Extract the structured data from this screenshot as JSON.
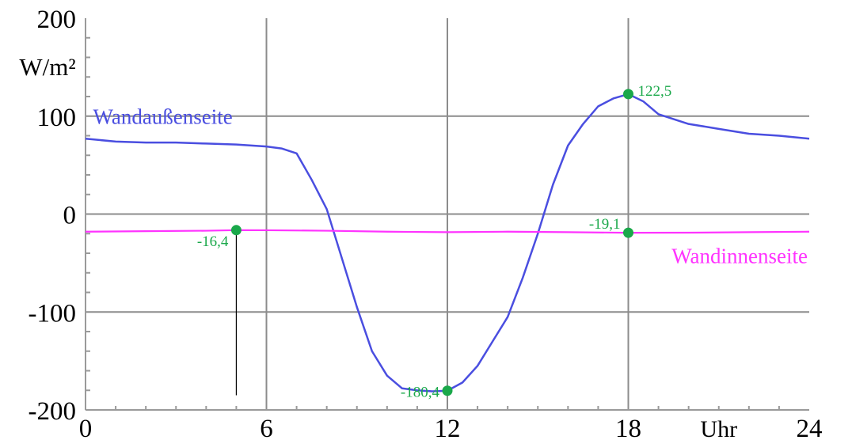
{
  "chart_data": {
    "type": "line",
    "x_ticks": [
      "0",
      "6",
      "12",
      "18",
      "24"
    ],
    "x_unit": "Uhr",
    "y_ticks": [
      "200",
      "100",
      "0",
      "-100",
      "-200"
    ],
    "y_unit": "W/m²",
    "xlim": [
      0,
      24
    ],
    "ylim": [
      -200,
      200
    ],
    "grid": true,
    "colors": {
      "outer": "#4a4ee0",
      "inner": "#ff33ff",
      "marker": "#1aa84a",
      "grid": "#8c8c8c",
      "axis": "#9a9a9a"
    },
    "series": [
      {
        "name": "Wandaußenseite",
        "x": [
          0,
          1,
          2,
          3,
          4,
          5,
          6,
          6.5,
          7,
          7.5,
          8,
          8.5,
          9,
          9.5,
          10,
          10.5,
          11,
          11.5,
          12,
          12.5,
          13,
          13.5,
          14,
          14.5,
          15,
          15.5,
          16,
          16.5,
          17,
          17.5,
          18,
          18.5,
          19,
          20,
          21,
          22,
          23,
          24
        ],
        "y": [
          77,
          74,
          73,
          73,
          72,
          71,
          69,
          67,
          62,
          35,
          5,
          -45,
          -95,
          -140,
          -165,
          -178,
          -180,
          -181,
          -180.4,
          -172,
          -155,
          -130,
          -105,
          -65,
          -20,
          30,
          70,
          92,
          110,
          118,
          122.5,
          115,
          102,
          92,
          87,
          82,
          80,
          77
        ]
      },
      {
        "name": "Wandinnenseite",
        "x": [
          0,
          2,
          4,
          5,
          6,
          8,
          10,
          12,
          14,
          16,
          18,
          20,
          22,
          24
        ],
        "y": [
          -18,
          -17.5,
          -17,
          -16.4,
          -16.5,
          -17,
          -18,
          -18.5,
          -18,
          -18.5,
          -19.1,
          -19,
          -18.5,
          -18
        ]
      }
    ],
    "annotations": [
      {
        "label": "-16,4",
        "x": 5,
        "y": -16.4
      },
      {
        "label": "-180,4",
        "x": 12,
        "y": -180.4
      },
      {
        "label": "-19,1",
        "x": 18,
        "y": -19.1
      },
      {
        "label": "122,5",
        "x": 18,
        "y": 122.5
      }
    ]
  }
}
